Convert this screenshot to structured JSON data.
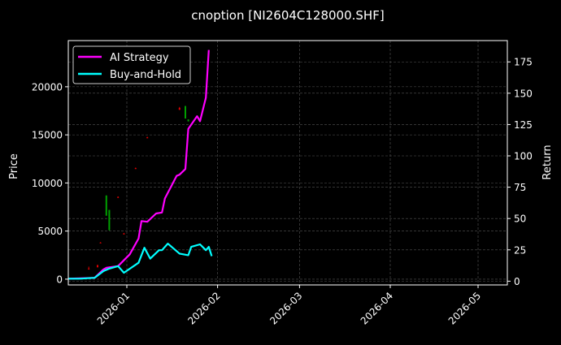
{
  "chart_data": {
    "type": "line",
    "title": "cnoption [NI2604C128000.SHF]",
    "ylabel_left": "Price",
    "ylabel_right": "Return",
    "xlim": [
      "2025-12-12",
      "2026-05-11"
    ],
    "ylim_left": [
      -600,
      24800
    ],
    "ylim_right": [
      -3,
      192
    ],
    "x_ticks": [
      "2026-01",
      "2026-02",
      "2026-03",
      "2026-04",
      "2026-05"
    ],
    "x_tick_dates": [
      "2026-01-01",
      "2026-02-01",
      "2026-03-01",
      "2026-04-01",
      "2026-05-01"
    ],
    "y_ticks_left": [
      0,
      5000,
      10000,
      15000,
      20000
    ],
    "y_ticks_right": [
      0,
      25,
      50,
      75,
      100,
      125,
      150,
      175
    ],
    "grid": true,
    "legend_position": "top-left",
    "colors": {
      "background": "#000000",
      "strategy": "#ff00ff",
      "buy_hold": "#00ffff",
      "up": "#00a000",
      "down": "#e00000",
      "grid": "#555555"
    },
    "series": [
      {
        "name": "AI Strategy",
        "axis": "right",
        "color": "#ff00ff",
        "x": [
          "2025-12-12",
          "2025-12-21",
          "2025-12-24",
          "2025-12-25",
          "2025-12-29",
          "2026-01-02",
          "2026-01-05",
          "2026-01-06",
          "2026-01-08",
          "2026-01-11",
          "2026-01-13",
          "2026-01-14",
          "2026-01-18",
          "2026-01-19",
          "2026-01-21",
          "2026-01-22",
          "2026-01-25",
          "2026-01-26",
          "2026-01-28",
          "2026-01-29"
        ],
        "values": [
          2,
          2.7,
          9.4,
          10.7,
          12,
          21.4,
          34,
          48,
          47.4,
          54,
          54.8,
          66,
          84,
          85,
          89.5,
          121.6,
          131.7,
          127.7,
          146.4,
          184.5
        ]
      },
      {
        "name": "Buy-and-Hold",
        "axis": "right",
        "color": "#00ffff",
        "x": [
          "2025-12-12",
          "2025-12-16",
          "2025-12-21",
          "2025-12-24",
          "2025-12-26",
          "2025-12-29",
          "2025-12-31",
          "2026-01-05",
          "2026-01-07",
          "2026-01-09",
          "2026-01-12",
          "2026-01-13",
          "2026-01-15",
          "2026-01-19",
          "2026-01-22",
          "2026-01-23",
          "2026-01-26",
          "2026-01-28",
          "2026-01-29",
          "2026-01-30"
        ],
        "values": [
          2,
          2,
          2.7,
          8,
          10,
          12,
          6.7,
          14.7,
          26.7,
          18,
          24.7,
          24.7,
          30,
          22,
          20.7,
          27.4,
          29.4,
          24.7,
          27.4,
          20
        ]
      }
    ],
    "candles": [
      {
        "date": "2025-12-19",
        "open": 1100,
        "high": 1300,
        "low": 1000,
        "close": 1000
      },
      {
        "date": "2025-12-22",
        "open": 1450,
        "high": 1500,
        "low": 1200,
        "close": 1250
      },
      {
        "date": "2025-12-23",
        "open": 3800,
        "high": 3850,
        "low": 3750,
        "close": 3750
      },
      {
        "date": "2025-12-25",
        "open": 6600,
        "high": 8700,
        "low": 6600,
        "close": 8700
      },
      {
        "date": "2025-12-26",
        "open": 5100,
        "high": 7200,
        "low": 5060,
        "close": 7200
      },
      {
        "date": "2025-12-29",
        "open": 8550,
        "high": 8600,
        "low": 8450,
        "close": 8450
      },
      {
        "date": "2025-12-31",
        "open": 4750,
        "high": 4800,
        "low": 4650,
        "close": 4650
      },
      {
        "date": "2026-01-04",
        "open": 11550,
        "high": 11600,
        "low": 11450,
        "close": 11450
      },
      {
        "date": "2026-01-08",
        "open": 14750,
        "high": 14800,
        "low": 14650,
        "close": 14650
      },
      {
        "date": "2026-01-19",
        "open": 17800,
        "high": 17900,
        "low": 17600,
        "close": 17600
      },
      {
        "date": "2026-01-21",
        "open": 16700,
        "high": 18000,
        "low": 16700,
        "close": 18000
      },
      {
        "date": "2026-01-22",
        "open": 16400,
        "high": 16600,
        "low": 16400,
        "close": 16600
      }
    ]
  }
}
